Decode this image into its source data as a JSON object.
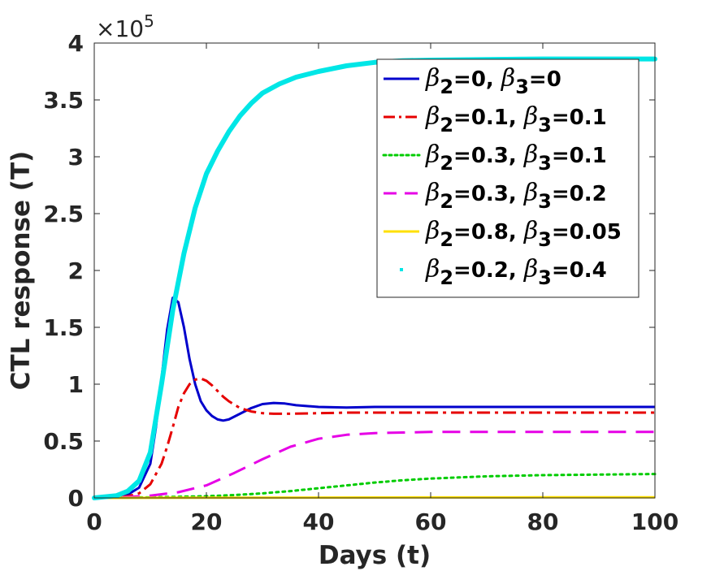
{
  "chart_data": {
    "type": "line",
    "title": "",
    "xlabel": "Days (t)",
    "ylabel": "CTL response (T)",
    "xlim": [
      0,
      100
    ],
    "ylim": [
      0,
      400000
    ],
    "y_scale_label": "×10",
    "y_scale_exponent": "5",
    "x_ticks": [
      0,
      20,
      40,
      60,
      80,
      100
    ],
    "x_tick_labels": [
      "0",
      "20",
      "40",
      "60",
      "80",
      "100"
    ],
    "y_ticks": [
      0,
      50000,
      100000,
      150000,
      200000,
      250000,
      300000,
      350000,
      400000
    ],
    "y_tick_labels": [
      "0",
      "0.5",
      "1",
      "1.5",
      "2",
      "2.5",
      "3",
      "3.5",
      "4"
    ],
    "grid": false,
    "legend_position": "top-right",
    "series": [
      {
        "name": "β2=0, β3=0",
        "legend": {
          "beta": "β",
          "sub2": "2",
          "v2": "=0, ",
          "sub3": "3",
          "v3": "=0"
        },
        "color": "#0000cc",
        "style": "solid",
        "x": [
          0,
          4,
          6,
          8,
          10,
          11,
          12,
          13,
          14,
          15,
          16,
          17,
          18,
          19,
          20,
          21,
          22,
          23,
          24,
          26,
          28,
          30,
          32,
          34,
          36,
          40,
          45,
          50,
          60,
          70,
          80,
          90,
          100
        ],
        "y": [
          0,
          1000,
          3000,
          9000,
          30000,
          62000,
          105000,
          148000,
          176000,
          172000,
          150000,
          122000,
          100000,
          85000,
          77000,
          72000,
          69000,
          68000,
          69000,
          74000,
          79000,
          82500,
          83500,
          83000,
          81500,
          80000,
          79500,
          80000,
          80000,
          80000,
          80000,
          80000,
          80000
        ]
      },
      {
        "name": "β2=0.1, β3=0.1",
        "legend": {
          "beta": "β",
          "sub2": "2",
          "v2": "=0.1, ",
          "sub3": "3",
          "v3": "=0.1"
        },
        "color": "#e60000",
        "style": "dashdot",
        "x": [
          0,
          4,
          6,
          8,
          10,
          12,
          13,
          14,
          15,
          16,
          17,
          18,
          19,
          20,
          21,
          22,
          23,
          24,
          26,
          28,
          30,
          32,
          35,
          40,
          45,
          50,
          60,
          70,
          80,
          90,
          100
        ],
        "y": [
          0,
          500,
          1500,
          4000,
          12000,
          30000,
          45000,
          62000,
          80000,
          92000,
          100000,
          104000,
          105000,
          103000,
          99000,
          94000,
          89000,
          85000,
          79000,
          76000,
          74500,
          74000,
          74000,
          74500,
          75000,
          75000,
          75000,
          75000,
          75000,
          75000,
          75000
        ]
      },
      {
        "name": "β2=0.3, β3=0.1",
        "legend": {
          "beta": "β",
          "sub2": "2",
          "v2": "=0.3, ",
          "sub3": "3",
          "v3": "=0.1"
        },
        "color": "#00cc00",
        "style": "dotted",
        "x": [
          0,
          10,
          20,
          25,
          30,
          35,
          40,
          45,
          50,
          55,
          60,
          65,
          70,
          80,
          90,
          100
        ],
        "y": [
          0,
          500,
          1500,
          2500,
          4000,
          6000,
          8500,
          11000,
          13500,
          15500,
          17000,
          18000,
          19000,
          20000,
          20500,
          21000
        ]
      },
      {
        "name": "β2=0.3, β3=0.2",
        "legend": {
          "beta": "β",
          "sub2": "2",
          "v2": "=0.3, ",
          "sub3": "3",
          "v3": "=0.2"
        },
        "color": "#e600e6",
        "style": "dashed",
        "x": [
          0,
          5,
          10,
          15,
          20,
          25,
          30,
          35,
          40,
          45,
          50,
          55,
          60,
          70,
          80,
          90,
          100
        ],
        "y": [
          0,
          500,
          2000,
          5000,
          11000,
          22000,
          34000,
          45000,
          52000,
          55500,
          57000,
          57500,
          58000,
          58000,
          58000,
          58000,
          58000
        ]
      },
      {
        "name": "β2=0.8, β3=0.05",
        "legend": {
          "beta": "β",
          "sub2": "2",
          "v2": "=0.8, ",
          "sub3": "3",
          "v3": "=0.05"
        },
        "color": "#ffe000",
        "style": "solid",
        "x": [
          0,
          20,
          40,
          60,
          80,
          100
        ],
        "y": [
          0,
          200,
          300,
          400,
          500,
          500
        ]
      },
      {
        "name": "β2=0.2, β3=0.4",
        "legend": {
          "beta": "β",
          "sub2": "2",
          "v2": "=0.2, ",
          "sub3": "3",
          "v3": "=0.4"
        },
        "color": "#00e6e6",
        "style": "point",
        "x": [
          0,
          4,
          6,
          8,
          10,
          12,
          14,
          16,
          18,
          20,
          22,
          24,
          26,
          28,
          30,
          33,
          36,
          40,
          45,
          50,
          55,
          60,
          70,
          80,
          90,
          100
        ],
        "y": [
          0,
          2000,
          6000,
          15000,
          40000,
          100000,
          165000,
          215000,
          255000,
          285000,
          305000,
          322000,
          336000,
          347000,
          356000,
          364000,
          370000,
          375000,
          380000,
          383000,
          384500,
          385000,
          385500,
          386000,
          386000,
          386000
        ]
      }
    ]
  }
}
